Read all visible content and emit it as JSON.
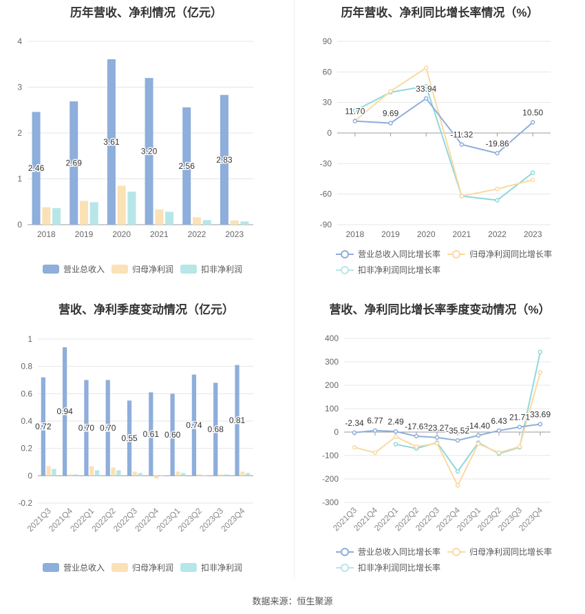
{
  "colors": {
    "revenue": "#8eaedb",
    "parent_profit": "#fbe1b6",
    "deducted_profit": "#b6e6e8",
    "revenue_line": "#8eaedb",
    "parent_line": "#fbd9a0",
    "deducted_line": "#8fd8db"
  },
  "source": "数据来源：恒生聚源",
  "chart_data": [
    {
      "id": "annual_amount",
      "type": "bar",
      "title": "历年营收、净利情况（亿元）",
      "categories": [
        "2018",
        "2019",
        "2020",
        "2021",
        "2022",
        "2023"
      ],
      "ylim": [
        0,
        4
      ],
      "yticks": [
        "0",
        "1",
        "2",
        "3",
        "4"
      ],
      "series": [
        {
          "name": "营业总收入",
          "values": [
            2.46,
            2.69,
            3.61,
            3.2,
            2.56,
            2.83
          ],
          "labels": [
            "2.46",
            "2.69",
            "3.61",
            "3.20",
            "2.56",
            "2.83"
          ]
        },
        {
          "name": "归母净利润",
          "values": [
            0.38,
            0.52,
            0.85,
            0.33,
            0.16,
            0.09
          ]
        },
        {
          "name": "扣非净利润",
          "values": [
            0.36,
            0.49,
            0.72,
            0.28,
            0.1,
            0.07
          ]
        }
      ],
      "legend": "bottom"
    },
    {
      "id": "annual_growth",
      "type": "line",
      "title": "历年营收、净利同比增长率情况（%）",
      "categories": [
        "2018",
        "2019",
        "2020",
        "2021",
        "2022",
        "2023"
      ],
      "ylim": [
        -90,
        90
      ],
      "yticks": [
        "90",
        "60",
        "30",
        "0",
        "-30",
        "-60",
        "-90"
      ],
      "series": [
        {
          "name": "营业总收入同比增长率",
          "values": [
            11.7,
            9.69,
            33.94,
            -11.32,
            -19.86,
            10.5
          ],
          "labels": [
            "11.70",
            "9.69",
            "33.94",
            "-11.32",
            "-19.86",
            "10.50"
          ]
        },
        {
          "name": "归母净利润同比增长率",
          "values": [
            12,
            41,
            64,
            -62,
            -55,
            -46
          ]
        },
        {
          "name": "扣非净利润同比增长率",
          "values": [
            22,
            40,
            46,
            -62,
            -66,
            -39
          ]
        }
      ],
      "legend": "bottom"
    },
    {
      "id": "quarterly_amount",
      "type": "bar",
      "title": "营收、净利季度变动情况（亿元）",
      "categories": [
        "2021Q3",
        "2021Q4",
        "2022Q1",
        "2022Q2",
        "2022Q3",
        "2022Q4",
        "2023Q1",
        "2023Q2",
        "2023Q3",
        "2023Q4"
      ],
      "ylim": [
        -0.2,
        1
      ],
      "yticks": [
        "1",
        "0.8",
        "0.6",
        "0.4",
        "0.2",
        "0",
        "-0.2"
      ],
      "series": [
        {
          "name": "营业总收入",
          "values": [
            0.72,
            0.94,
            0.7,
            0.7,
            0.55,
            0.61,
            0.6,
            0.74,
            0.68,
            0.81
          ],
          "labels": [
            "0.72",
            "0.94",
            "0.70",
            "0.70",
            "0.55",
            "0.61",
            "0.60",
            "0.74",
            "0.68",
            "0.81"
          ]
        },
        {
          "name": "归母净利润",
          "values": [
            0.07,
            0.01,
            0.07,
            0.06,
            0.03,
            -0.02,
            0.03,
            0.01,
            0.01,
            0.03
          ]
        },
        {
          "name": "扣非净利润",
          "values": [
            0.05,
            0.01,
            0.04,
            0.04,
            0.02,
            0.0,
            0.02,
            0.0,
            0.01,
            0.02
          ]
        }
      ],
      "legend": "bottom"
    },
    {
      "id": "quarterly_growth",
      "type": "line",
      "title": "营收、净利同比增长率季度变动情况（%）",
      "categories": [
        "2021Q3",
        "2021Q4",
        "2022Q1",
        "2022Q2",
        "2022Q3",
        "2022Q4",
        "2023Q1",
        "2023Q2",
        "2023Q3",
        "2023Q4"
      ],
      "ylim": [
        -300,
        400
      ],
      "yticks": [
        "400",
        "300",
        "200",
        "100",
        "0",
        "-100",
        "-200",
        "-300"
      ],
      "series": [
        {
          "name": "营业总收入同比增长率",
          "values": [
            -2.34,
            6.77,
            2.49,
            -17.63,
            -23.27,
            -35.52,
            -14.4,
            6.43,
            21.71,
            33.69
          ],
          "labels": [
            "-2.34",
            "6.77",
            "2.49",
            "-17.63",
            "-23.27",
            "-35.52",
            "-14.40",
            "6.43",
            "21.71",
            "33.69"
          ]
        },
        {
          "name": "归母净利润同比增长率",
          "values": [
            -65,
            -88,
            -20,
            -62,
            -48,
            -228,
            -50,
            -88,
            -62,
            255
          ]
        },
        {
          "name": "扣非净利润同比增长率",
          "values": [
            null,
            null,
            -52,
            -70,
            -45,
            -168,
            -45,
            -92,
            -65,
            342
          ]
        }
      ],
      "legend": "bottom"
    }
  ]
}
